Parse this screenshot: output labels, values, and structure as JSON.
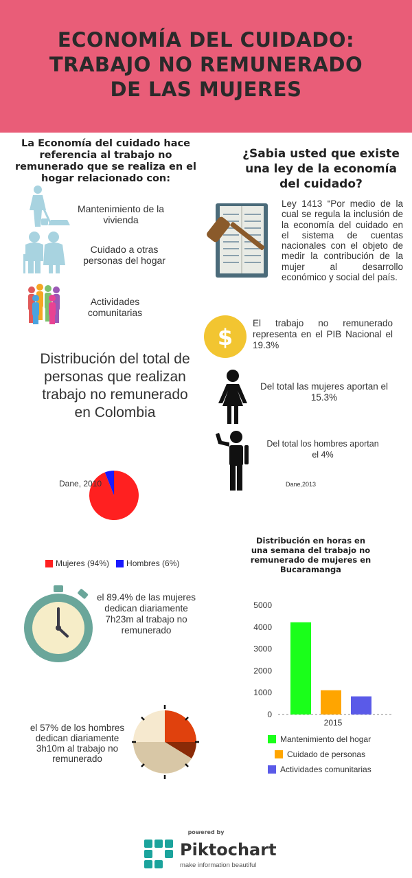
{
  "header": {
    "title_lines": [
      "ECONOMÍA DEL CUIDADO:",
      "TRABAJO NO REMUNERADO",
      "DE LAS MUJERES"
    ]
  },
  "intro": {
    "text": "La Economía del cuidado hace referencia al trabajo no remunerado que se realiza en el hogar relacionado con:",
    "items": [
      {
        "icon": "cleaning-person-icon",
        "label": "Mantenimiento de la vivienda"
      },
      {
        "icon": "elderly-couple-icon",
        "label": "Cuidado a otras personas del hogar"
      },
      {
        "icon": "community-group-icon",
        "label": "Actividades comunitarias"
      }
    ]
  },
  "law": {
    "question": "¿Sabia usted que existe una ley de la economía del cuidado?",
    "icon": "law-book-gavel-icon",
    "text": "Ley 1413 “Por medio de la cual se regula la inclusión de la economía del cuidado en el sistema de cuentas nacionales con el objeto de medir la contribución de la mujer al desarrollo económico y social del país."
  },
  "stats": {
    "pib": "El trabajo no remunerado representa en el PIB Nacional el 19.3%",
    "women": "Del total las mujeres aportan el 15.3%",
    "men": "Del total los hombres aportan el 4%",
    "source": "Dane,2013"
  },
  "distribution": {
    "title": "Distribución del total de personas que realizan trabajo no remunerado en Colombia",
    "source": "Dane, 2010"
  },
  "chart_data": [
    {
      "type": "pie",
      "categories": [
        "Mujeres (94%)",
        "Hombres (6%)"
      ],
      "values": [
        94,
        6
      ],
      "colors": [
        "#ff2020",
        "#1a1aff"
      ],
      "legend": "bottom"
    },
    {
      "type": "bar",
      "title": "Distribución en horas en una semana del trabajo no remunerado de mujeres en Bucaramanga",
      "categories": [
        "2015"
      ],
      "series": [
        {
          "name": "Mantenimiento del hogar",
          "values": [
            4220
          ],
          "color": "#1aff1a"
        },
        {
          "name": "Cuidado de personas",
          "values": [
            1110
          ],
          "color": "#ffa500"
        },
        {
          "name": "Actividades comunitarias",
          "values": [
            830
          ],
          "color": "#5a5ae8"
        }
      ],
      "yticks": [
        "5000",
        "4000",
        "3000",
        "2000",
        "1000",
        "0"
      ],
      "ylim": [
        0,
        5000
      ],
      "legend": "bottom"
    }
  ],
  "time": {
    "women": "el 89.4% de las mujeres dedican diariamente 7h23m al trabajo no remunerado",
    "men": "el 57% de los hombres dedican diariamente 3h10m al trabajo no remunerado"
  },
  "footer": {
    "powered": "powered by",
    "brand": "Piktochart",
    "tagline": "make information beautiful"
  },
  "colors": {
    "header": "#e95d78",
    "icon_blue": "#a8d3e0",
    "coin": "#f2c531",
    "clock_teal": "#6aa69a"
  }
}
